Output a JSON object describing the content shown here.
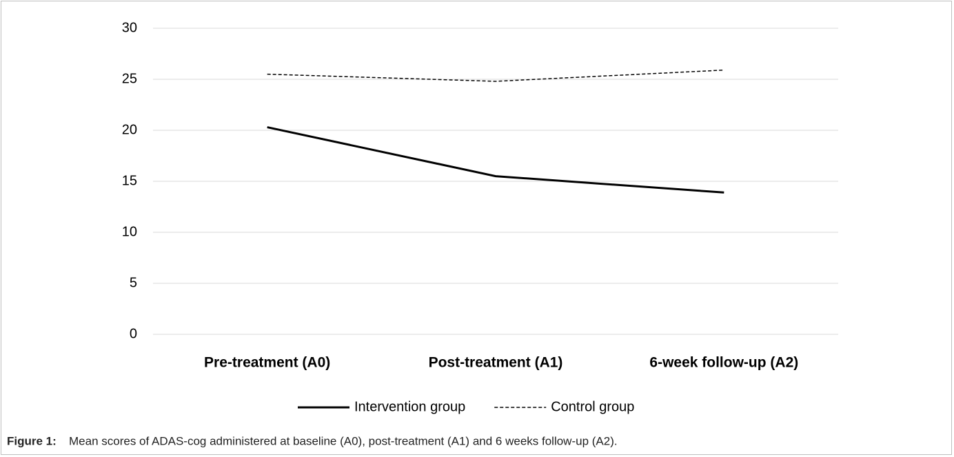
{
  "chart_data": {
    "type": "line",
    "categories": [
      "Pre-treatment (A0)",
      "Post-treatment (A1)",
      "6-week follow-up (A2)"
    ],
    "series": [
      {
        "name": "Intervention group",
        "color": "#000000",
        "line_style": "solid",
        "values": [
          20.3,
          15.5,
          13.9
        ]
      },
      {
        "name": "Control group",
        "color": "#000000",
        "line_style": "dashed",
        "values": [
          25.5,
          24.8,
          25.9
        ]
      }
    ],
    "ylim": [
      0,
      30
    ],
    "yticks": [
      0,
      5,
      10,
      15,
      20,
      25,
      30
    ],
    "grid": true,
    "legend": "bottom",
    "caption_label": "Figure 1:",
    "caption": "Mean scores of ADAS-cog administered at baseline (A0), post-treatment (A1) and 6 weeks follow-up (A2)."
  }
}
